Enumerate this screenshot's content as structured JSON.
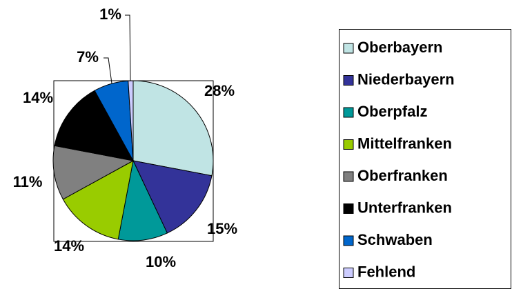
{
  "chart_data": {
    "type": "pie",
    "categories": [
      "Oberbayern",
      "Niederbayern",
      "Oberpfalz",
      "Mittelfranken",
      "Oberfranken",
      "Unterfranken",
      "Schwaben",
      "Fehlend"
    ],
    "values": [
      28,
      15,
      10,
      14,
      11,
      14,
      7,
      1
    ],
    "value_labels": [
      "28%",
      "15%",
      "10%",
      "14%",
      "11%",
      "14%",
      "7%",
      "1%"
    ],
    "colors": [
      "#c0e4e4",
      "#333399",
      "#009999",
      "#99cc00",
      "#808080",
      "#000000",
      "#0066cc",
      "#ccccff"
    ],
    "legend": "right"
  }
}
